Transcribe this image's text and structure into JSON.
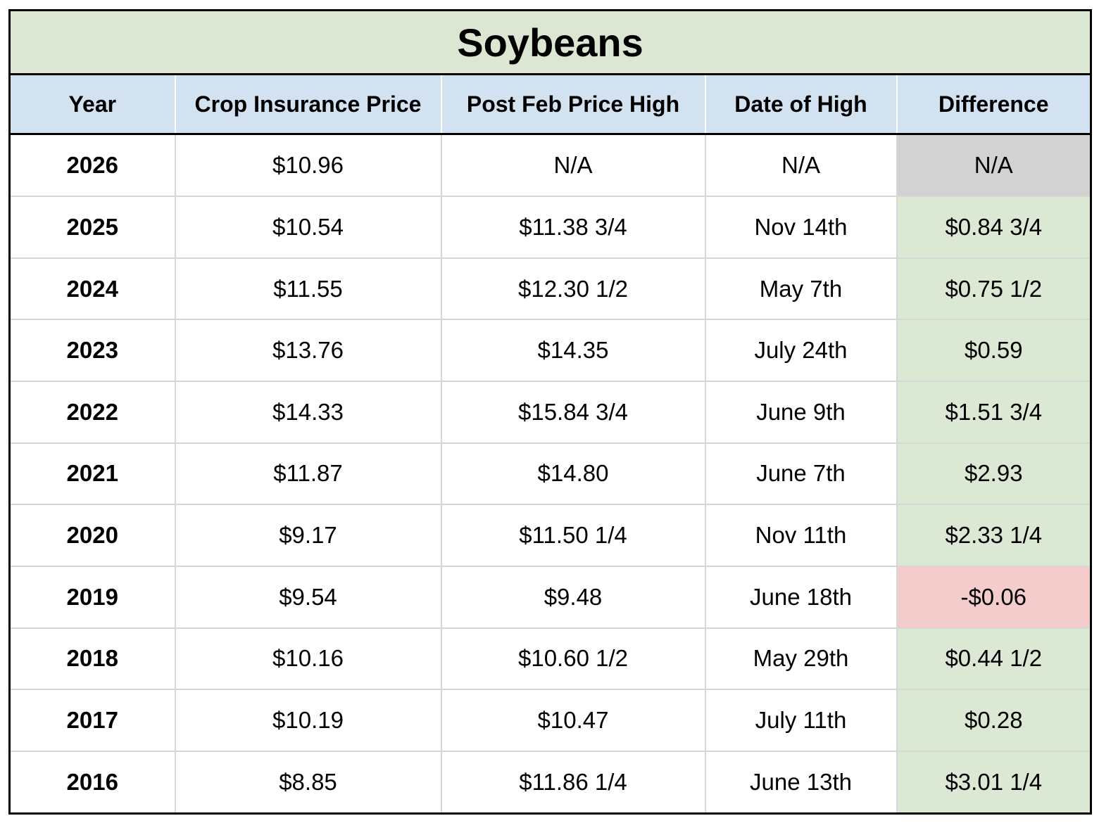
{
  "table": {
    "title": "Soybeans",
    "columns": [
      "Year",
      "Crop Insurance Price",
      "Post Feb Price High",
      "Date of High",
      "Difference"
    ],
    "rows": [
      {
        "year": "2026",
        "crop_insurance_price": "$10.96",
        "post_feb_price_high": "N/A",
        "date_of_high": "N/A",
        "difference": "N/A",
        "difference_status": "na"
      },
      {
        "year": "2025",
        "crop_insurance_price": "$10.54",
        "post_feb_price_high": "$11.38 3/4",
        "date_of_high": "Nov 14th",
        "difference": "$0.84 3/4",
        "difference_status": "positive"
      },
      {
        "year": "2024",
        "crop_insurance_price": "$11.55",
        "post_feb_price_high": "$12.30 1/2",
        "date_of_high": "May 7th",
        "difference": "$0.75 1/2",
        "difference_status": "positive"
      },
      {
        "year": "2023",
        "crop_insurance_price": "$13.76",
        "post_feb_price_high": "$14.35",
        "date_of_high": "July 24th",
        "difference": "$0.59",
        "difference_status": "positive"
      },
      {
        "year": "2022",
        "crop_insurance_price": "$14.33",
        "post_feb_price_high": "$15.84 3/4",
        "date_of_high": "June 9th",
        "difference": "$1.51 3/4",
        "difference_status": "positive"
      },
      {
        "year": "2021",
        "crop_insurance_price": "$11.87",
        "post_feb_price_high": "$14.80",
        "date_of_high": "June 7th",
        "difference": "$2.93",
        "difference_status": "positive"
      },
      {
        "year": "2020",
        "crop_insurance_price": "$9.17",
        "post_feb_price_high": "$11.50 1/4",
        "date_of_high": "Nov 11th",
        "difference": "$2.33 1/4",
        "difference_status": "positive"
      },
      {
        "year": "2019",
        "crop_insurance_price": "$9.54",
        "post_feb_price_high": "$9.48",
        "date_of_high": "June 18th",
        "difference": "-$0.06",
        "difference_status": "negative"
      },
      {
        "year": "2018",
        "crop_insurance_price": "$10.16",
        "post_feb_price_high": "$10.60 1/2",
        "date_of_high": "May 29th",
        "difference": "$0.44 1/2",
        "difference_status": "positive"
      },
      {
        "year": "2017",
        "crop_insurance_price": "$10.19",
        "post_feb_price_high": "$10.47",
        "date_of_high": "July 11th",
        "difference": "$0.28",
        "difference_status": "positive"
      },
      {
        "year": "2016",
        "crop_insurance_price": "$8.85",
        "post_feb_price_high": "$11.86 1/4",
        "date_of_high": "June 13th",
        "difference": "$3.01 1/4",
        "difference_status": "positive"
      }
    ]
  },
  "colors": {
    "title_bg": "#dbe7d2",
    "header_bg": "#d3e2f0",
    "positive_bg": "#dbe8d3",
    "negative_bg": "#f4cccc",
    "na_bg": "#d2d2d2",
    "grid_line": "#d7d7d7",
    "border": "#000000"
  },
  "chart_data": {
    "type": "table",
    "title": "Soybeans",
    "columns": [
      "Year",
      "Crop Insurance Price",
      "Post Feb Price High",
      "Date of High",
      "Difference"
    ],
    "rows": [
      [
        "2026",
        "$10.96",
        "N/A",
        "N/A",
        "N/A"
      ],
      [
        "2025",
        "$10.54",
        "$11.38 3/4",
        "Nov 14th",
        "$0.84 3/4"
      ],
      [
        "2024",
        "$11.55",
        "$12.30 1/2",
        "May 7th",
        "$0.75 1/2"
      ],
      [
        "2023",
        "$13.76",
        "$14.35",
        "July 24th",
        "$0.59"
      ],
      [
        "2022",
        "$14.33",
        "$15.84 3/4",
        "June 9th",
        "$1.51 3/4"
      ],
      [
        "2021",
        "$11.87",
        "$14.80",
        "June 7th",
        "$2.93"
      ],
      [
        "2020",
        "$9.17",
        "$11.50 1/4",
        "Nov 11th",
        "$2.33 1/4"
      ],
      [
        "2019",
        "$9.54",
        "$9.48",
        "June 18th",
        "-$0.06"
      ],
      [
        "2018",
        "$10.16",
        "$10.60 1/2",
        "May 29th",
        "$0.44 1/2"
      ],
      [
        "2017",
        "$10.19",
        "$10.47",
        "July 11th",
        "$0.28"
      ],
      [
        "2016",
        "$8.85",
        "$11.86 1/4",
        "June 13th",
        "$3.01 1/4"
      ]
    ],
    "difference_cell_coloring": {
      "positive": "#dbe8d3",
      "negative": "#f4cccc",
      "na": "#d2d2d2"
    }
  }
}
